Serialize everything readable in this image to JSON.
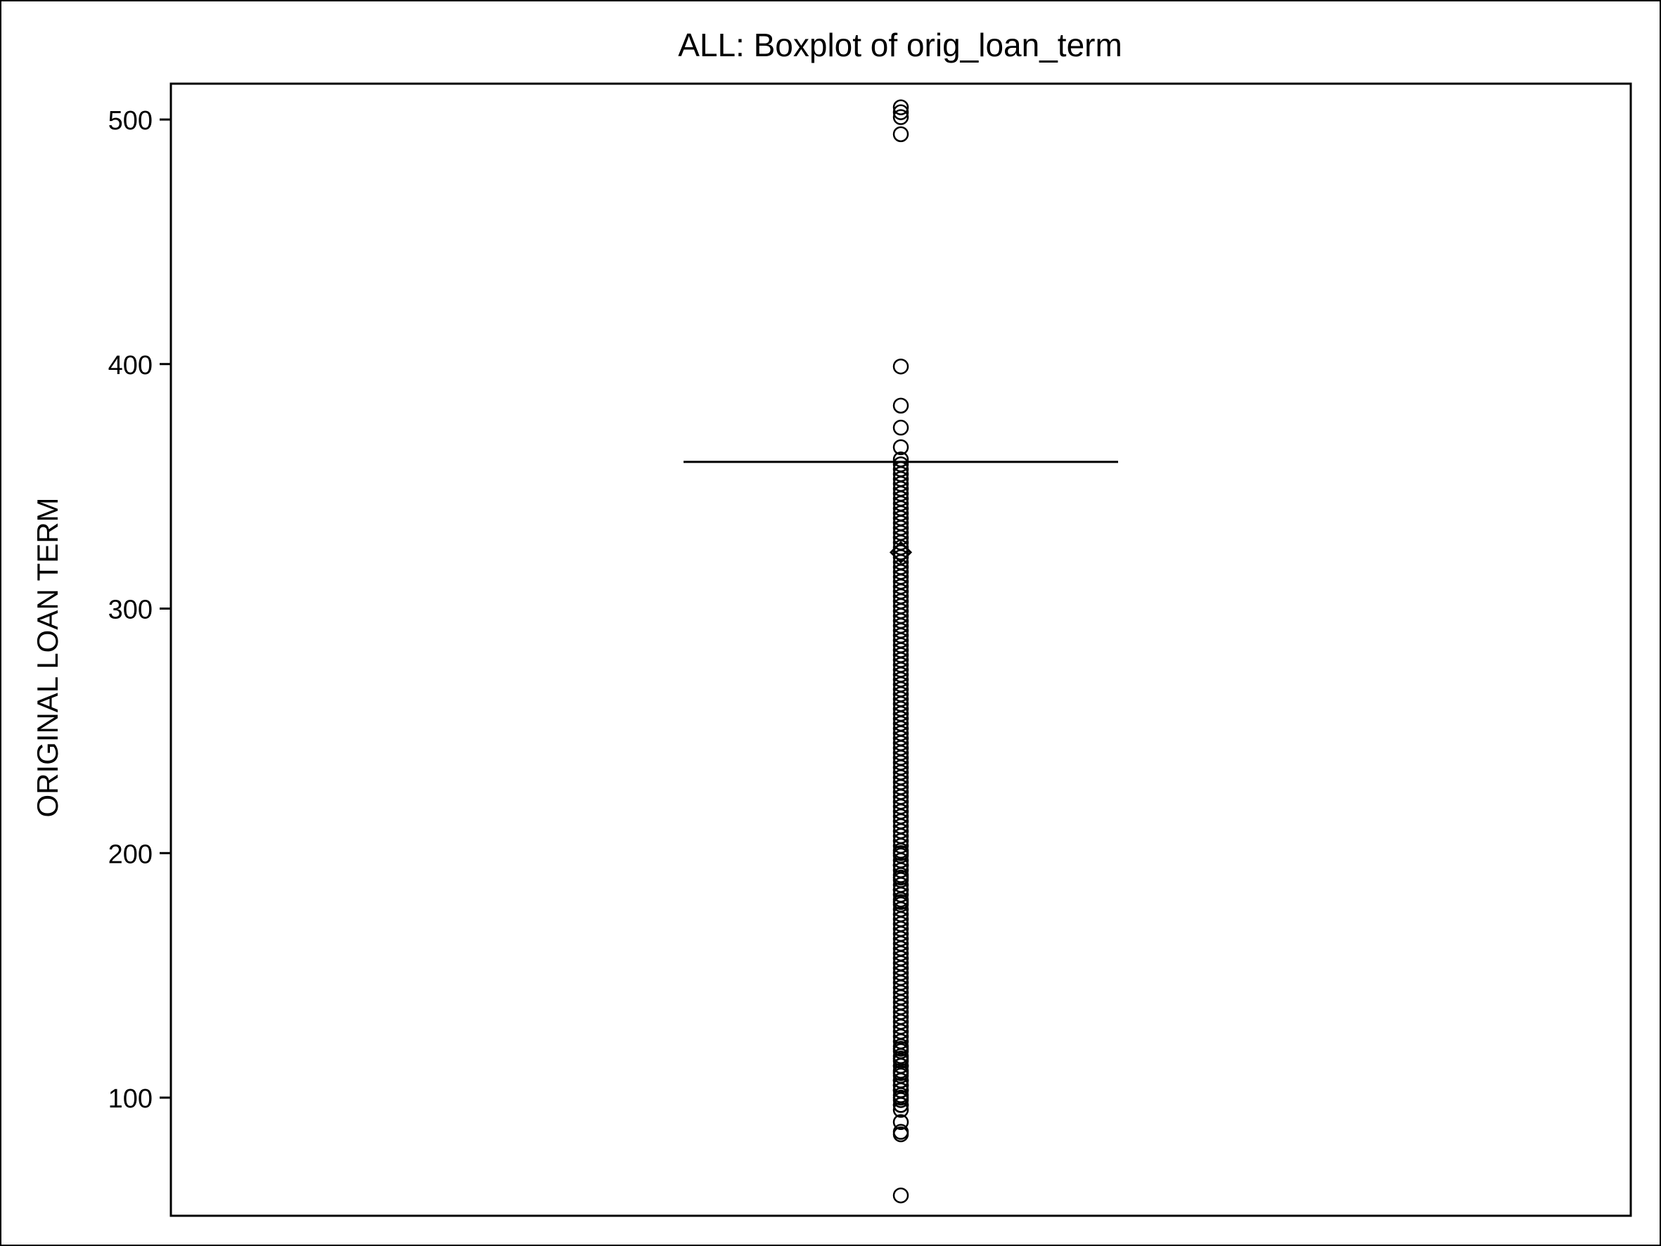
{
  "chart_data": {
    "type": "boxplot",
    "title": "ALL: Boxplot of orig_loan_term",
    "xlabel": "",
    "ylabel": "ORIGINAL LOAN TERM",
    "ylim": [
      55,
      515
    ],
    "yticks": [
      100,
      200,
      300,
      400,
      500
    ],
    "grid": false,
    "legend": "none",
    "box": {
      "q1": 360,
      "median": 360,
      "q3": 360,
      "whisker_low": 360,
      "whisker_high": 360,
      "mean": 323
    },
    "outliers_dense_range": [
      95,
      362
    ],
    "outliers": [
      60,
      85,
      86,
      90,
      97,
      100,
      103,
      105,
      107,
      110,
      113,
      116,
      120,
      180,
      185,
      190,
      195,
      200,
      366,
      374,
      383,
      399,
      494,
      501,
      503,
      505
    ]
  },
  "colors": {
    "line": "#000000",
    "background": "#ffffff"
  }
}
